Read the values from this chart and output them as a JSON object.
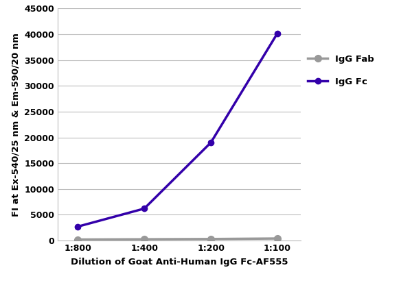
{
  "x_labels": [
    "1:800",
    "1:400",
    "1:200",
    "1:100"
  ],
  "x_values": [
    1,
    2,
    3,
    4
  ],
  "igg_fc_values": [
    2700,
    6200,
    19000,
    40200
  ],
  "igg_fab_values": [
    200,
    250,
    300,
    400
  ],
  "igg_fc_color": "#3300AA",
  "igg_fab_color": "#999999",
  "igg_fc_label": "IgG Fc",
  "igg_fab_label": "IgG Fab",
  "xlabel": "Dilution of Goat Anti-Human IgG Fc-AF555",
  "ylabel": "FI at Ex-540/25 nm & Em-590/20 nm",
  "ylim": [
    0,
    45000
  ],
  "yticks": [
    0,
    5000,
    10000,
    15000,
    20000,
    25000,
    30000,
    35000,
    40000,
    45000
  ],
  "ytick_labels": [
    "0",
    "5000",
    "10000",
    "15000",
    "20000",
    "25000",
    "30000",
    "35000",
    "40000",
    "45000"
  ],
  "axis_label_fontsize": 9.5,
  "tick_fontsize": 9,
  "legend_fontsize": 9.5,
  "background_color": "#ffffff",
  "grid_color": "#bbbbbb",
  "line_width": 2.5,
  "marker_size_fc": 6,
  "marker_size_fab": 7
}
